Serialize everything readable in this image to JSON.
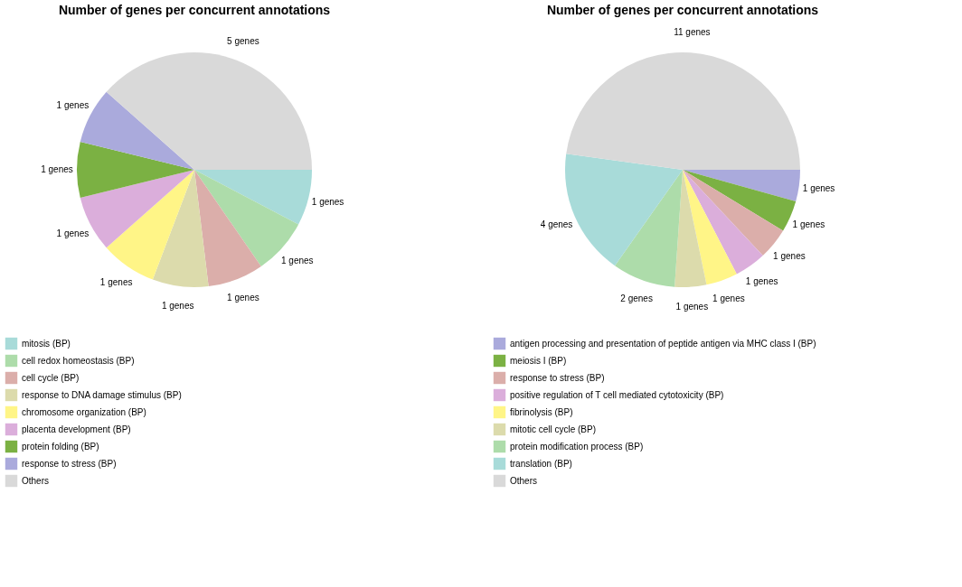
{
  "chart_data": [
    {
      "type": "pie",
      "title": "Number of genes per concurrent annotations",
      "categories": [
        "mitosis (BP)",
        "cell redox homeostasis (BP)",
        "cell cycle (BP)",
        "response to DNA damage stimulus (BP)",
        "chromosome organization (BP)",
        "placenta development (BP)",
        "protein folding (BP)",
        "response to stress (BP)",
        "Others"
      ],
      "values": [
        1,
        1,
        1,
        1,
        1,
        1,
        1,
        1,
        5
      ],
      "colors": [
        "#a8dbd9",
        "#addcaa",
        "#dbaeaa",
        "#dcdbac",
        "#fff587",
        "#dbaedb",
        "#7bb143",
        "#aaaadc",
        "#d9d9d9"
      ],
      "value_labels": [
        "1  genes",
        "1  genes",
        "1  genes",
        "1  genes",
        "1  genes",
        "1  genes",
        "1  genes",
        "1  genes",
        "5  genes"
      ],
      "legend": "bottom"
    },
    {
      "type": "pie",
      "title": "Number of genes per concurrent annotations",
      "categories": [
        "antigen processing and presentation of peptide antigen via MHC class I (BP)",
        "meiosis I (BP)",
        "response to stress (BP)",
        "positive regulation of T cell mediated cytotoxicity (BP)",
        "fibrinolysis (BP)",
        "mitotic cell cycle (BP)",
        "protein modification process (BP)",
        "translation (BP)",
        "Others"
      ],
      "values": [
        1,
        1,
        1,
        1,
        1,
        1,
        2,
        4,
        11
      ],
      "colors": [
        "#aaaadc",
        "#7bb143",
        "#dbaeaa",
        "#dbaedb",
        "#fff587",
        "#dcdbac",
        "#addcaa",
        "#a8dbd9",
        "#d9d9d9"
      ],
      "value_labels": [
        "1  genes",
        "1  genes",
        "1  genes",
        "1  genes",
        "1  genes",
        "1  genes",
        "2  genes",
        "4  genes",
        "11  genes"
      ],
      "legend": "bottom"
    }
  ]
}
